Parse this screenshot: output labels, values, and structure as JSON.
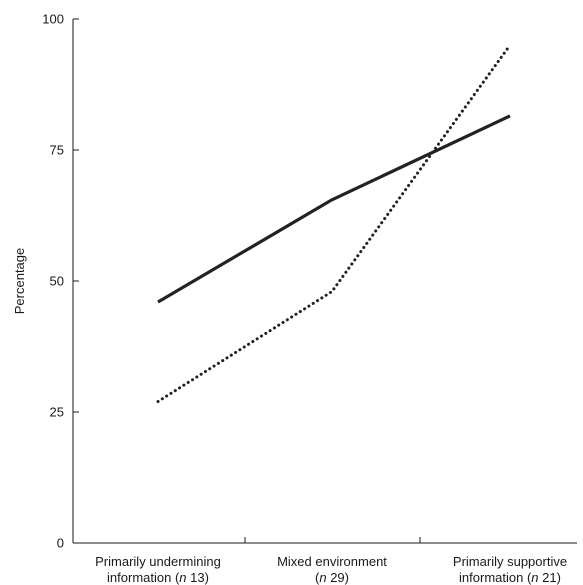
{
  "chart_data": {
    "type": "line",
    "title": "",
    "xlabel": "",
    "ylabel": "Percentage",
    "ylim": [
      0,
      100
    ],
    "yticks": [
      0,
      25,
      50,
      75,
      100
    ],
    "grid": false,
    "categories": [
      {
        "line1": "Primarily undermining",
        "line2_pre": "information (",
        "n_italic": "n",
        "n_value": " 13)"
      },
      {
        "line1": "Mixed environment",
        "line2_pre": "(",
        "n_italic": "n",
        "n_value": " 29)"
      },
      {
        "line1": "Primarily supportive",
        "line2_pre": "information (",
        "n_italic": "n",
        "n_value": " 21)"
      }
    ],
    "series": [
      {
        "style": "solid",
        "color": "#222222",
        "values": [
          46,
          65.5,
          81.5
        ]
      },
      {
        "style": "dotted",
        "color": "#222222",
        "values": [
          27,
          48,
          95
        ]
      }
    ]
  }
}
